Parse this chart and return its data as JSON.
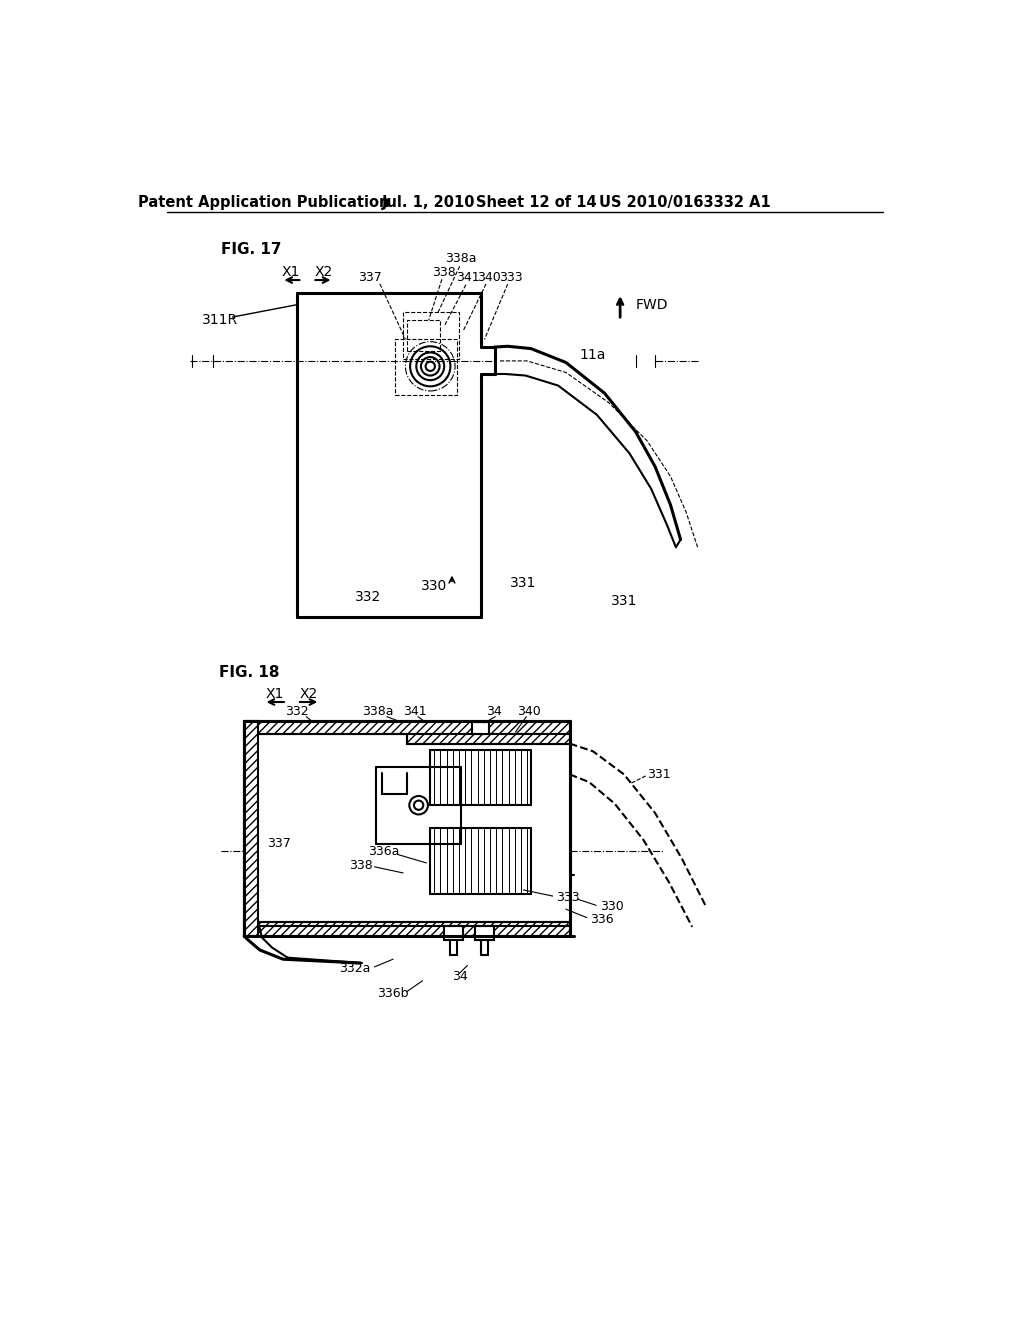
{
  "bg_color": "#ffffff",
  "header_text": "Patent Application Publication",
  "header_date": "Jul. 1, 2010",
  "header_sheet": "Sheet 12 of 14",
  "header_patent": "US 2010/0163332 A1",
  "fig17_label": "FIG. 17",
  "fig18_label": "FIG. 18",
  "lc": "#000000",
  "lw": 1.5,
  "tlw": 0.8,
  "thk": 2.2
}
